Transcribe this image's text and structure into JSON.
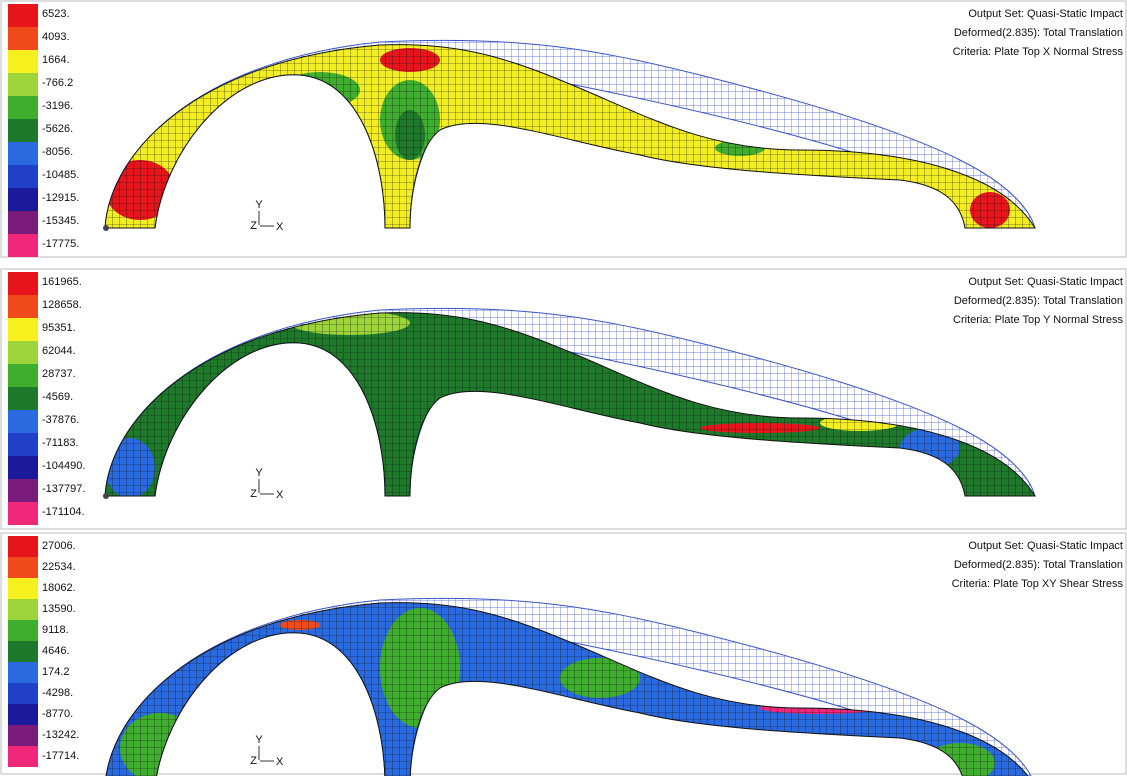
{
  "panels": [
    {
      "legend": [
        "6523.",
        "4093.",
        "1664.",
        "-766.2",
        "-3196.",
        "-5626.",
        "-8056.",
        "-10485.",
        "-12915.",
        "-15345.",
        "-17775."
      ],
      "output_set": "Output Set: Quasi-Static Impact",
      "deformed": "Deformed(2.835): Total Translation",
      "criteria": "Criteria: Plate Top X Normal Stress",
      "triad": {
        "y": "Y",
        "z": "Z",
        "x": "X"
      }
    },
    {
      "legend": [
        "161965.",
        "128658.",
        "95351.",
        "62044.",
        "28737.",
        "-4569.",
        "-37876.",
        "-71183.",
        "-104490.",
        "-137797.",
        "-171104."
      ],
      "output_set": "Output Set: Quasi-Static Impact",
      "deformed": "Deformed(2.835): Total Translation",
      "criteria": "Criteria: Plate Top Y Normal Stress",
      "triad": {
        "y": "Y",
        "z": "Z",
        "x": "X"
      }
    },
    {
      "legend": [
        "27006.",
        "22534.",
        "18062.",
        "13590.",
        "9118.",
        "4646.",
        "174.2",
        "-4298.",
        "-8770.",
        "-13242.",
        "-17714."
      ],
      "output_set": "Output Set: Quasi-Static Impact",
      "deformed": "Deformed(2.835): Total Translation",
      "criteria": "Criteria: Plate Top XY Shear Stress",
      "triad": {
        "y": "Y",
        "z": "Z",
        "x": "X"
      }
    }
  ]
}
